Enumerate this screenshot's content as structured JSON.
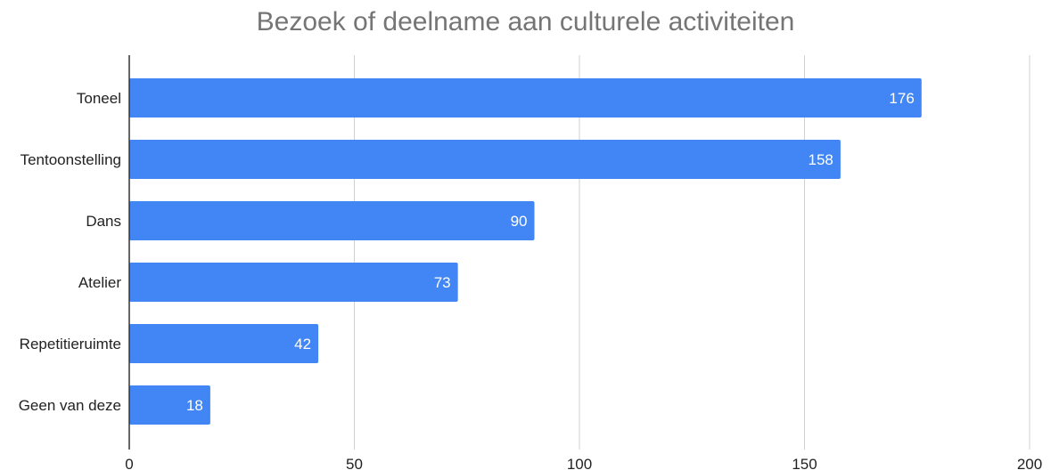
{
  "chart_data": {
    "type": "bar",
    "orientation": "horizontal",
    "title": "Bezoek of deelname aan culturele activiteiten",
    "categories": [
      "Toneel",
      "Tentoonstelling",
      "Dans",
      "Atelier",
      "Repetitieruimte",
      "Geen van deze"
    ],
    "values": [
      176,
      158,
      90,
      73,
      42,
      18
    ],
    "data_labels": [
      "176",
      "158",
      "90",
      "73",
      "42",
      "18"
    ],
    "xlim": [
      0,
      200
    ],
    "x_ticks": [
      0,
      50,
      100,
      150,
      200
    ],
    "x_tick_labels": [
      "0",
      "50",
      "100",
      "150",
      "200"
    ],
    "grid": true,
    "bar_color": "#4285f4",
    "legend": "none"
  }
}
